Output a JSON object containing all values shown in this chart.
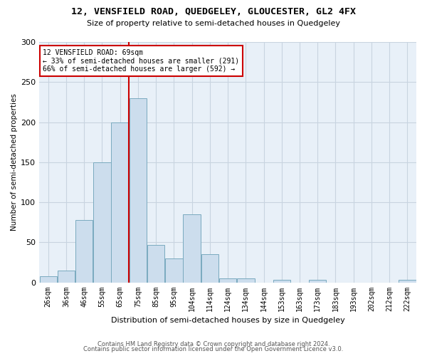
{
  "title": "12, VENSFIELD ROAD, QUEDGELEY, GLOUCESTER, GL2 4FX",
  "subtitle": "Size of property relative to semi-detached houses in Quedgeley",
  "xlabel": "Distribution of semi-detached houses by size in Quedgeley",
  "ylabel": "Number of semi-detached properties",
  "bar_color": "#ccdded",
  "bar_edge_color": "#7aaabf",
  "grid_color": "#c8d4e0",
  "background_color": "#e8f0f8",
  "property_line_x": 71,
  "property_label": "12 VENSFIELD ROAD: 69sqm",
  "smaller_pct": "33%",
  "smaller_n": 291,
  "larger_pct": "66%",
  "larger_n": 592,
  "annotation_box_color": "#cc0000",
  "categories": [
    "26sqm",
    "36sqm",
    "46sqm",
    "55sqm",
    "65sqm",
    "75sqm",
    "85sqm",
    "95sqm",
    "104sqm",
    "114sqm",
    "124sqm",
    "134sqm",
    "144sqm",
    "153sqm",
    "163sqm",
    "173sqm",
    "183sqm",
    "193sqm",
    "202sqm",
    "212sqm",
    "222sqm"
  ],
  "bin_edges": [
    21,
    31,
    41,
    51,
    61,
    71,
    81,
    91,
    101,
    111,
    121,
    131,
    141,
    151,
    161,
    171,
    181,
    191,
    201,
    211,
    221,
    231
  ],
  "values": [
    8,
    15,
    78,
    150,
    200,
    230,
    47,
    30,
    85,
    35,
    5,
    5,
    0,
    3,
    0,
    3,
    0,
    0,
    0,
    0,
    3
  ],
  "ylim": [
    0,
    300
  ],
  "yticks": [
    0,
    50,
    100,
    150,
    200,
    250,
    300
  ],
  "footnote1": "Contains HM Land Registry data © Crown copyright and database right 2024.",
  "footnote2": "Contains public sector information licensed under the Open Government Licence v3.0."
}
